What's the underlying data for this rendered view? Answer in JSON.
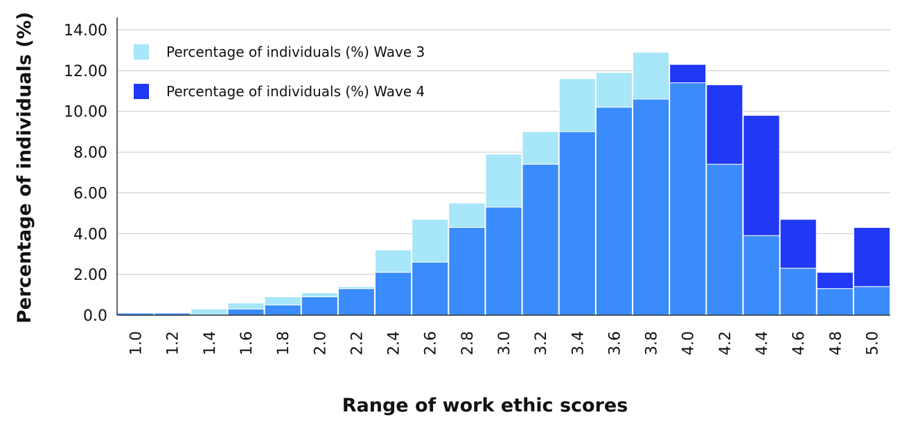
{
  "chart_data": {
    "type": "bar",
    "title": "",
    "xlabel": "Range of work ethic scores",
    "ylabel": "Percentage of individuals (%)",
    "ylim": [
      0,
      14
    ],
    "yticks": [
      "0.0",
      "2.00",
      "4.00",
      "6.00",
      "8.00",
      "10.00",
      "12.00",
      "14.00"
    ],
    "categories": [
      "1.0",
      "1.2",
      "1.4",
      "1.6",
      "1.8",
      "2.0",
      "2.2",
      "2.4",
      "2.6",
      "2.8",
      "3.0",
      "3.2",
      "3.4",
      "3.6",
      "3.8",
      "4.0",
      "4.2",
      "4.4",
      "4.6",
      "4.8",
      "5.0"
    ],
    "series": [
      {
        "name": "Percentage of individuals (%) Wave 3",
        "color": "#a8e6fa",
        "values": [
          0.1,
          0.1,
          0.3,
          0.6,
          0.9,
          1.1,
          1.4,
          3.2,
          4.7,
          5.5,
          7.9,
          9.0,
          11.6,
          11.9,
          12.9,
          11.4,
          7.4,
          3.9,
          2.3,
          1.3,
          1.4
        ]
      },
      {
        "name": "Percentage of individuals (%) Wave 4",
        "color": "#2138f5",
        "values": [
          0.1,
          0.1,
          0.0,
          0.3,
          0.5,
          0.9,
          1.3,
          2.1,
          2.6,
          4.3,
          5.3,
          7.4,
          9.0,
          10.2,
          10.6,
          12.3,
          11.3,
          9.8,
          4.7,
          2.1,
          4.3
        ]
      }
    ],
    "overlap_color": "#3a8cfd",
    "grid": true,
    "legend": "top-left"
  }
}
